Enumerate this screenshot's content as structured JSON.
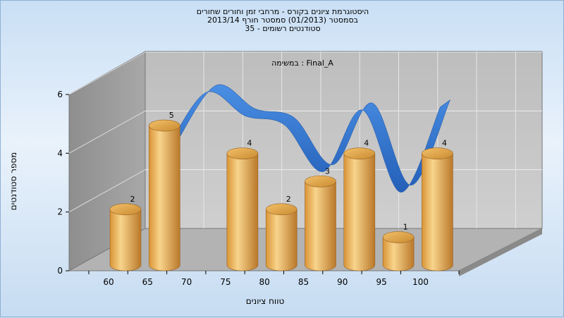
{
  "chart_data": {
    "type": "bar",
    "title_lines": [
      "היסטוגרמת ציונים בקורס - מרחבי זמן וחורים שחורים",
      "בסמסטר  (01/2013)  סמסטר חורף 2013/14",
      "סטודנטים רשומים - 35"
    ],
    "annotation": "במשימה : Final_A",
    "xlabel": "טווח ציונים",
    "ylabel": "מספר סטודנטים",
    "x_ticks": [
      "60",
      "65",
      "70",
      "75",
      "80",
      "85",
      "90",
      "95",
      "100"
    ],
    "y_ticks": [
      "0",
      "2",
      "4",
      "6"
    ],
    "ylim": [
      0,
      6
    ],
    "grid": true,
    "series": [
      {
        "type": "bar",
        "x": [
          60,
          65,
          70,
          75,
          80,
          85,
          90,
          95,
          100
        ],
        "values": [
          2,
          5,
          0,
          4,
          2,
          3,
          4,
          1,
          4
        ],
        "data_labels": [
          "2",
          "5",
          "",
          "4",
          "2",
          "3",
          "4",
          "1",
          "4"
        ],
        "color": "#e7a94a"
      },
      {
        "type": "smooth-ribbon",
        "x": [
          65,
          70,
          75,
          80,
          85,
          90,
          95,
          100
        ],
        "values": [
          3.5,
          5.4,
          4.6,
          4.3,
          2.7,
          4.8,
          2.0,
          4.9
        ],
        "color": "#3377cc"
      }
    ],
    "colors": {
      "bar_light": "#f8d48c",
      "bar_mid": "#e9a94b",
      "bar_dark": "#b9782a",
      "ribbon_front": "#3a7fd6",
      "ribbon_back": "#555555",
      "back_wall": "#c4c4c4",
      "side_wall": "#9c9c9c",
      "floor": "#b0b0b0"
    }
  }
}
